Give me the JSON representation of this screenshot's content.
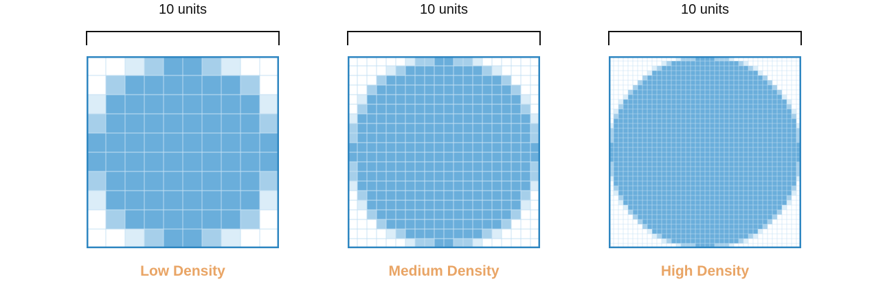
{
  "colors": {
    "fill": "#6aaedb",
    "partial": "#a6cfea",
    "faint": "#dbedf8",
    "grid_line": "#c4e0f3",
    "inner_grid_line": "#b9dcf2",
    "border": "#2e86c1",
    "bracket": "#111111",
    "label": "#e9a566"
  },
  "panels": [
    {
      "units_label": "10 units",
      "density_label": "Low Density",
      "cells_per_side": 10
    },
    {
      "units_label": "10 units",
      "density_label": "Medium Density",
      "cells_per_side": 20
    },
    {
      "units_label": "10 units",
      "density_label": "High Density",
      "cells_per_side": 40
    }
  ]
}
